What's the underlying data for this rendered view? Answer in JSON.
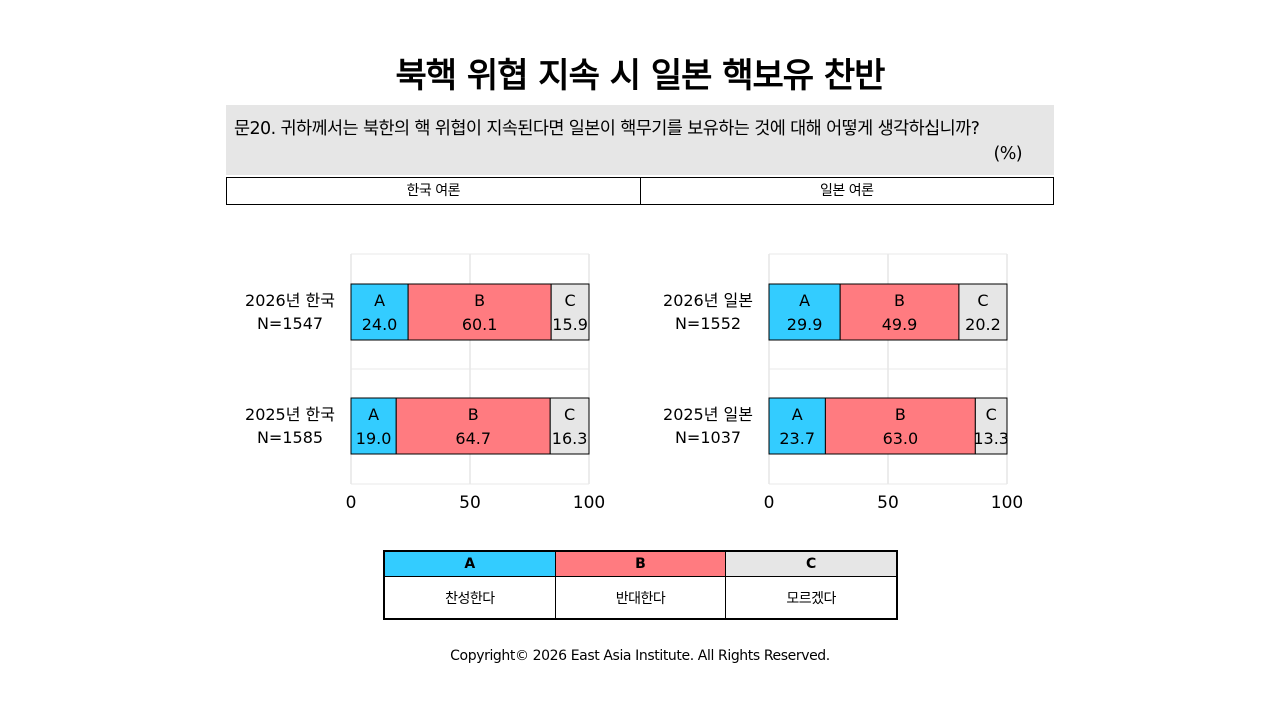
{
  "title": "북핵 위협 지속 시 일본 핵보유 찬반",
  "question": "문20. 귀하께서는 북한의 핵 위협이 지속된다면 일본이 핵무기를 보유하는 것에 대해 어떻게 생각하십니까?",
  "unit": "(%)",
  "panels": [
    "한국 여론",
    "일본 여론"
  ],
  "legend": [
    {
      "key": "A",
      "label": "찬성한다",
      "color": "#33ccff"
    },
    {
      "key": "B",
      "label": "반대한다",
      "color": "#ff7b80"
    },
    {
      "key": "C",
      "label": "모르겠다",
      "color": "#e6e6e6"
    }
  ],
  "copyright": "Copyright© 2026 East Asia Institute. All Rights Reserved.",
  "chart_data": [
    {
      "type": "bar",
      "stacked": true,
      "orientation": "horizontal",
      "categories": [
        "2026년 한국\nN=1547",
        "2025년 한국\nN=1585"
      ],
      "series": [
        {
          "name": "A",
          "values": [
            24.0,
            19.0
          ]
        },
        {
          "name": "B",
          "values": [
            60.1,
            64.7
          ]
        },
        {
          "name": "C",
          "values": [
            15.9,
            16.3
          ]
        }
      ],
      "xlim": [
        0,
        100
      ],
      "xticks": [
        0,
        50,
        100
      ],
      "grid": true
    },
    {
      "type": "bar",
      "stacked": true,
      "orientation": "horizontal",
      "categories": [
        "2026년 일본\nN=1552",
        "2025년 일본\nN=1037"
      ],
      "series": [
        {
          "name": "A",
          "values": [
            29.9,
            23.7
          ]
        },
        {
          "name": "B",
          "values": [
            49.9,
            63.0
          ]
        },
        {
          "name": "C",
          "values": [
            20.2,
            13.3
          ]
        }
      ],
      "xlim": [
        0,
        100
      ],
      "xticks": [
        0,
        50,
        100
      ],
      "grid": true
    }
  ]
}
